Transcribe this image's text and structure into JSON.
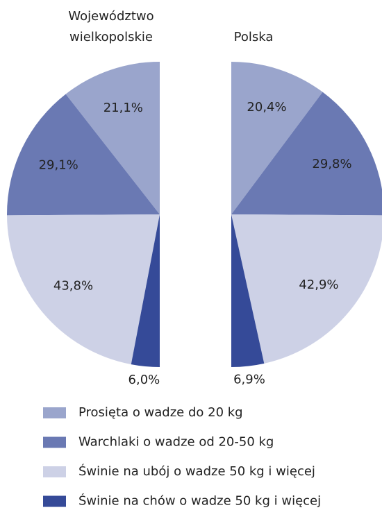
{
  "chart_data": [
    {
      "type": "pie",
      "title": [
        "Województwo",
        "wielkopolskie"
      ],
      "categories": [
        "Prosięta o wadze do 20 kg",
        "Warchlaki o wadze od 20-50 kg",
        "Świnie na ubój o wadze 50 kg i więcej",
        "Świnie na chów o wadze 50 kg i więcej"
      ],
      "values": [
        21.1,
        29.1,
        43.8,
        6.0
      ],
      "value_labels": [
        "21,1%",
        "29,1%",
        "43,8%",
        "6,0%"
      ],
      "colors": [
        "#9aa5cc",
        "#6a79b3",
        "#cdd1e6",
        "#354a98"
      ],
      "half": "left"
    },
    {
      "type": "pie",
      "title": [
        "Polska"
      ],
      "categories": [
        "Prosięta o wadze do 20 kg",
        "Warchlaki o wadze od 20-50 kg",
        "Świnie na ubój o wadze 50 kg i więcej",
        "Świnie na chów o wadze 50 kg i więcej"
      ],
      "values": [
        20.4,
        29.8,
        42.9,
        6.9
      ],
      "value_labels": [
        "20,4%",
        "29,8%",
        "42,9%",
        "6,9%"
      ],
      "colors": [
        "#9aa5cc",
        "#6a79b3",
        "#cdd1e6",
        "#354a98"
      ],
      "half": "right"
    }
  ]
}
